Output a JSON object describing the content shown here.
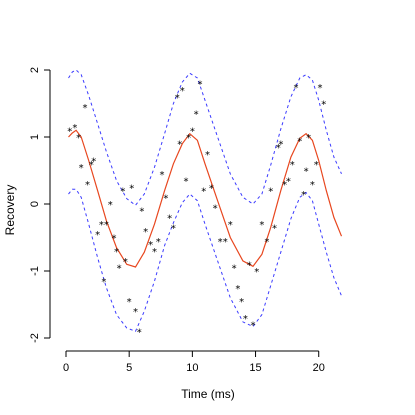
{
  "chart_data": {
    "type": "scatter",
    "title": "",
    "xlabel": "Time (ms)",
    "ylabel": "Recovery",
    "xlim": [
      0,
      22
    ],
    "ylim": [
      -2,
      2
    ],
    "x_ticks": [
      0,
      5,
      10,
      15,
      20
    ],
    "y_ticks": [
      -2,
      -1,
      0,
      1,
      2
    ],
    "point_glyph": "*",
    "colors": {
      "fit": "#e8471f",
      "band": "#3b3bff",
      "points": "#000000"
    },
    "series": [
      {
        "type": "line",
        "style": "solid",
        "x": [
          0.2,
          0.5,
          0.8,
          1.2,
          1.8,
          2.5,
          3.2,
          4.0,
          4.8,
          5.5,
          6.2,
          7.0,
          7.8,
          8.5,
          9.2,
          9.8,
          10.4,
          11.0,
          12.0,
          13.0,
          14.0,
          14.8,
          15.5,
          16.2,
          17.0,
          17.8,
          18.5,
          19.0,
          19.5,
          20.0,
          20.6,
          21.2,
          21.8
        ],
        "y": [
          1.0,
          1.06,
          1.1,
          1.0,
          0.65,
          0.2,
          -0.25,
          -0.65,
          -0.9,
          -0.94,
          -0.72,
          -0.3,
          0.2,
          0.6,
          0.9,
          1.05,
          0.95,
          0.6,
          0.05,
          -0.5,
          -0.85,
          -0.93,
          -0.75,
          -0.35,
          0.2,
          0.7,
          0.98,
          1.05,
          0.95,
          0.65,
          0.2,
          -0.2,
          -0.48
        ]
      },
      {
        "type": "line",
        "style": "dashed",
        "x": [
          0.2,
          0.5,
          0.8,
          1.2,
          1.8,
          2.5,
          3.2,
          4.0,
          4.8,
          5.5,
          6.2,
          7.0,
          7.8,
          8.5,
          9.2,
          9.8,
          10.4,
          11.0,
          12.0,
          13.0,
          14.0,
          14.8,
          15.5,
          16.2,
          17.0,
          17.8,
          18.5,
          19.0,
          19.5,
          20.0,
          20.6,
          21.2,
          21.8
        ],
        "y": [
          1.88,
          1.97,
          2.0,
          1.93,
          1.62,
          1.2,
          0.78,
          0.35,
          0.08,
          -0.02,
          0.15,
          0.55,
          1.05,
          1.5,
          1.82,
          1.95,
          1.88,
          1.55,
          1.0,
          0.45,
          0.1,
          0.0,
          0.15,
          0.58,
          1.12,
          1.6,
          1.88,
          1.93,
          1.85,
          1.55,
          1.1,
          0.7,
          0.45
        ]
      },
      {
        "type": "line",
        "style": "dashed",
        "x": [
          0.2,
          0.5,
          0.8,
          1.2,
          1.8,
          2.5,
          3.2,
          4.0,
          4.8,
          5.5,
          6.2,
          7.0,
          7.8,
          8.5,
          9.2,
          9.8,
          10.4,
          11.0,
          12.0,
          13.0,
          14.0,
          14.8,
          15.5,
          16.2,
          17.0,
          17.8,
          18.5,
          19.0,
          19.5,
          20.0,
          20.6,
          21.2,
          21.8
        ],
        "y": [
          0.15,
          0.22,
          0.22,
          0.1,
          -0.3,
          -0.8,
          -1.25,
          -1.65,
          -1.85,
          -1.9,
          -1.6,
          -1.15,
          -0.62,
          -0.28,
          0.02,
          0.15,
          0.05,
          -0.3,
          -0.85,
          -1.4,
          -1.76,
          -1.83,
          -1.65,
          -1.22,
          -0.72,
          -0.22,
          0.1,
          0.17,
          0.05,
          -0.3,
          -0.72,
          -1.1,
          -1.37
        ]
      },
      {
        "type": "scatter",
        "x": [
          0.3,
          0.7,
          1.0,
          1.2,
          1.5,
          1.7,
          2.0,
          2.2,
          2.5,
          2.8,
          3.0,
          3.2,
          3.5,
          3.8,
          4.0,
          4.2,
          4.5,
          4.7,
          5.0,
          5.2,
          5.5,
          5.8,
          6.0,
          6.3,
          6.7,
          7.0,
          7.3,
          7.6,
          7.9,
          8.2,
          8.5,
          8.8,
          9.0,
          9.2,
          9.5,
          9.7,
          10.0,
          10.3,
          10.6,
          10.9,
          11.2,
          11.5,
          11.8,
          12.2,
          12.6,
          13.0,
          13.3,
          13.6,
          13.9,
          14.2,
          14.5,
          14.8,
          15.1,
          15.5,
          15.9,
          16.2,
          16.5,
          16.8,
          17.0,
          17.3,
          17.6,
          17.9,
          18.2,
          18.5,
          18.8,
          19.0,
          19.2,
          19.5,
          19.8,
          20.1,
          20.4
        ],
        "y": [
          1.1,
          1.15,
          1.0,
          0.55,
          1.45,
          0.3,
          0.6,
          0.65,
          -0.45,
          -0.3,
          -1.15,
          -0.3,
          0.0,
          -0.5,
          -0.7,
          -0.95,
          0.2,
          -0.85,
          -1.45,
          0.25,
          -1.6,
          -1.9,
          -0.1,
          -0.4,
          -0.6,
          -0.7,
          -0.55,
          0.45,
          0.1,
          -0.2,
          -0.35,
          1.6,
          0.9,
          1.7,
          0.35,
          1.0,
          1.1,
          1.35,
          1.8,
          0.2,
          0.75,
          0.25,
          -0.05,
          -0.55,
          -0.55,
          -0.3,
          -0.95,
          -1.25,
          -1.45,
          -1.7,
          -0.9,
          -1.8,
          -1.0,
          -0.3,
          -0.55,
          0.2,
          -0.35,
          0.85,
          0.9,
          0.3,
          0.35,
          0.6,
          1.75,
          0.95,
          0.15,
          0.5,
          1.0,
          0.3,
          0.6,
          1.75,
          1.5
        ]
      }
    ]
  }
}
